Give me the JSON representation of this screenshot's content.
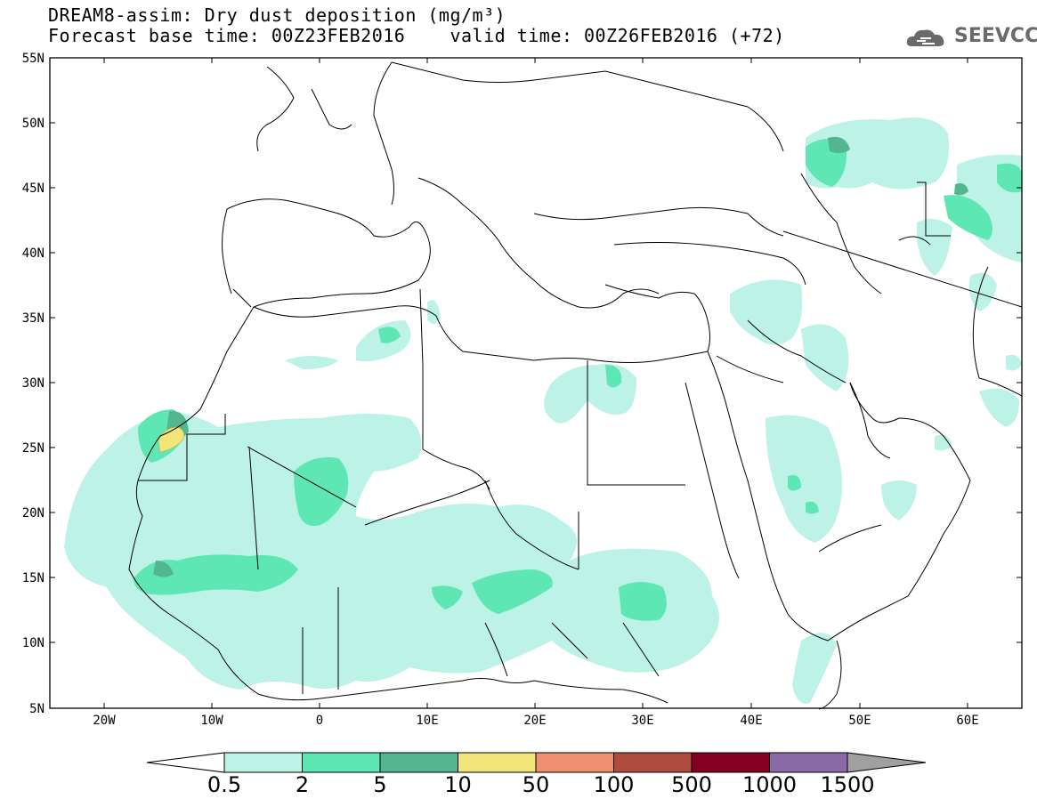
{
  "header": {
    "title_line1": "DREAM8-assim: Dry dust deposition (mg/m³)",
    "title_line2": "Forecast base time: 00Z23FEB2016    valid time: 00Z26FEB2016 (+72)",
    "logo_text": "SEEVCCC"
  },
  "map": {
    "lat_labels": [
      "55N",
      "50N",
      "45N",
      "40N",
      "35N",
      "30N",
      "25N",
      "20N",
      "15N",
      "10N",
      "5N"
    ],
    "lon_labels": [
      "20W",
      "10W",
      "0",
      "10E",
      "20E",
      "30E",
      "40E",
      "50E",
      "60E"
    ]
  },
  "colorbar": {
    "labels": [
      "0.5",
      "2",
      "5",
      "10",
      "50",
      "100",
      "500",
      "1000",
      "1500"
    ],
    "colors": [
      "#bdf2e6",
      "#5ee6b5",
      "#54b591",
      "#f2e67a",
      "#ee9071",
      "#b04b40",
      "#830020",
      "#8a6aa6"
    ],
    "under_color": "#ffffff",
    "over_color": "#a0a0a0"
  }
}
